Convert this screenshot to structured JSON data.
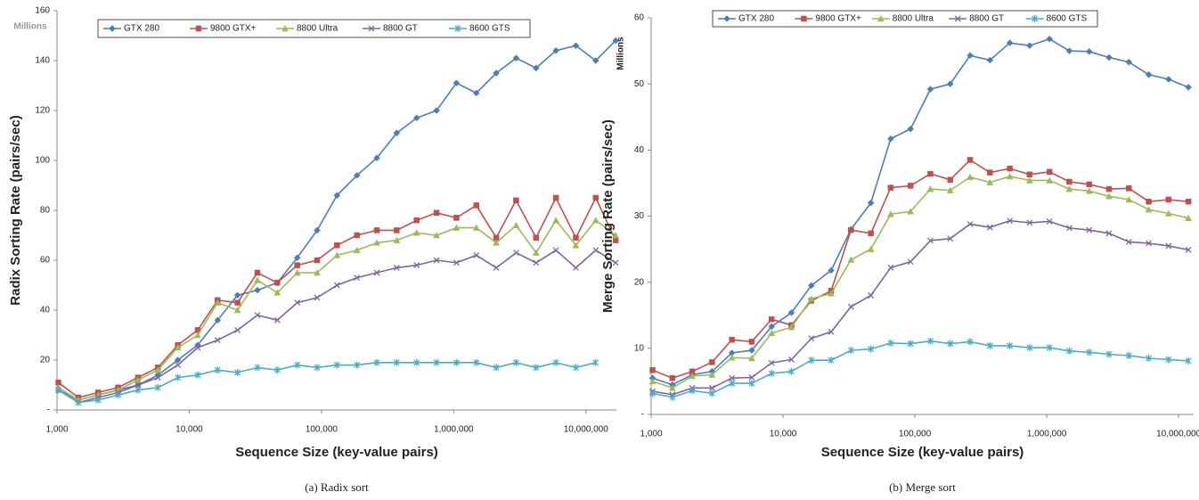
{
  "chart_data": [
    {
      "type": "line",
      "y_title": "Radix Sorting Rate (pairs/sec)",
      "y_unit_label": "Millions",
      "x_title": "Sequence Size (key-value pairs)",
      "caption": "(a) Radix sort",
      "log_x": true,
      "grid": false,
      "legend_position": "top",
      "xlim": [
        1000,
        17000000
      ],
      "xticks": [
        {
          "value": 1000,
          "label": "1,000"
        },
        {
          "value": 10000,
          "label": "10,000"
        },
        {
          "value": 100000,
          "label": "100,000"
        },
        {
          "value": 1000000,
          "label": "1,000,000"
        },
        {
          "value": 10000000,
          "label": "10,000,000"
        }
      ],
      "ylim": [
        0,
        160
      ],
      "yticks": [
        {
          "value": 0,
          "label": "-"
        },
        20,
        40,
        60,
        80,
        100,
        120,
        140,
        160
      ],
      "x": [
        1024,
        1448,
        2048,
        2896,
        4096,
        5793,
        8192,
        11585,
        16384,
        23170,
        32768,
        46341,
        65536,
        92682,
        131072,
        185364,
        262144,
        370728,
        524288,
        741455,
        1048576,
        1482910,
        2097152,
        2965821,
        4194304,
        5931642,
        8388608,
        11863283,
        16777216
      ],
      "series": [
        {
          "name": "GTX 280",
          "color": "#4a7ebb",
          "marker": "diamond",
          "values": [
            8,
            4,
            6,
            8,
            10,
            14,
            20,
            26,
            36,
            46,
            48,
            51,
            61,
            72,
            86,
            94,
            101,
            111,
            117,
            120,
            131,
            127,
            135,
            141,
            137,
            144,
            146,
            140,
            148
          ]
        },
        {
          "name": "9800 GTX+",
          "color": "#c0504d",
          "marker": "square",
          "values": [
            11,
            5,
            7,
            9,
            13,
            17,
            26,
            32,
            44,
            43,
            55,
            51,
            58,
            60,
            66,
            70,
            72,
            72,
            76,
            79,
            77,
            82,
            69,
            84,
            69,
            85,
            69,
            85,
            68
          ]
        },
        {
          "name": "8800 Ultra",
          "color": "#9bbb59",
          "marker": "triangle",
          "values": [
            9,
            4,
            6,
            8,
            12,
            16,
            25,
            30,
            43,
            40,
            52,
            47,
            55,
            55,
            62,
            64,
            67,
            68,
            71,
            70,
            73,
            73,
            67,
            74,
            63,
            76,
            66,
            76,
            70
          ]
        },
        {
          "name": "8800 GT",
          "color": "#8064a2",
          "marker": "x",
          "values": [
            8,
            3,
            5,
            7,
            10,
            13,
            18,
            25,
            28,
            32,
            38,
            36,
            43,
            45,
            50,
            53,
            55,
            57,
            58,
            60,
            59,
            62,
            57,
            63,
            59,
            64,
            57,
            64,
            59
          ]
        },
        {
          "name": "8600 GTS",
          "color": "#4bacc6",
          "marker": "star",
          "values": [
            8,
            3,
            4,
            6,
            8,
            9,
            13,
            14,
            16,
            15,
            17,
            16,
            18,
            17,
            18,
            18,
            19,
            19,
            19,
            19,
            19,
            19,
            17,
            19,
            17,
            19,
            17,
            19,
            null
          ]
        }
      ]
    },
    {
      "type": "line",
      "y_title": "Merge Sorting Rate (pairs/sec)",
      "y_unit_label": "Millions",
      "x_title": "Sequence Size (key-value pairs)",
      "caption": "(b) Merge sort",
      "log_x": true,
      "grid": false,
      "legend_position": "top",
      "xlim": [
        1000,
        13000000
      ],
      "xticks": [
        {
          "value": 1000,
          "label": "1,000"
        },
        {
          "value": 10000,
          "label": "10,000"
        },
        {
          "value": 100000,
          "label": "100,000"
        },
        {
          "value": 1000000,
          "label": "1,000,000"
        },
        {
          "value": 10000000,
          "label": "10,000,000"
        }
      ],
      "ylim": [
        0,
        60
      ],
      "yticks": [
        {
          "value": 0,
          "label": "-"
        },
        10,
        20,
        30,
        40,
        50,
        60
      ],
      "x": [
        1024,
        1448,
        2048,
        2896,
        4096,
        5793,
        8192,
        11585,
        16384,
        23170,
        32768,
        46341,
        65536,
        92682,
        131072,
        185364,
        262144,
        370728,
        524288,
        741455,
        1048576,
        1482910,
        2097152,
        2965821,
        4194304,
        5931642,
        8388608,
        11863283
      ],
      "series": [
        {
          "name": "GTX 280",
          "color": "#4a7ebb",
          "marker": "diamond",
          "values": [
            5.5,
            4.5,
            6,
            6.5,
            9.3,
            9.7,
            13.3,
            15.4,
            19.5,
            21.8,
            28,
            32,
            41.7,
            43.2,
            49.2,
            50,
            54.3,
            53.6,
            56.2,
            55.8,
            56.8,
            55,
            54.9,
            54,
            53.3,
            51.4,
            50.7,
            49.5
          ]
        },
        {
          "name": "9800 GTX+",
          "color": "#c0504d",
          "marker": "square",
          "values": [
            6.7,
            5.5,
            6.5,
            7.9,
            11.3,
            11,
            14.4,
            13.5,
            17.2,
            18.7,
            27.9,
            27.4,
            34.3,
            34.6,
            36.4,
            35.5,
            38.5,
            36.6,
            37.2,
            36.3,
            36.7,
            35.2,
            34.8,
            34.1,
            34.2,
            32.2,
            32.5,
            32.2
          ]
        },
        {
          "name": "8800 Ultra",
          "color": "#9bbb59",
          "marker": "triangle",
          "values": [
            5,
            4,
            5.8,
            6,
            8.6,
            8.5,
            12.3,
            13.2,
            17.5,
            18.3,
            23.4,
            25,
            30.3,
            30.7,
            34.1,
            33.9,
            35.9,
            35.1,
            36,
            35.4,
            35.4,
            34.1,
            33.8,
            33,
            32.5,
            31,
            30.4,
            29.7
          ]
        },
        {
          "name": "8800 GT",
          "color": "#8064a2",
          "marker": "x",
          "values": [
            3.5,
            3,
            4,
            4,
            5.5,
            5.6,
            7.8,
            8.3,
            11.5,
            12.5,
            16.3,
            18,
            22.2,
            23.1,
            26.3,
            26.6,
            28.8,
            28.3,
            29.3,
            29,
            29.2,
            28.2,
            27.9,
            27.4,
            26.1,
            25.9,
            25.5,
            24.9
          ]
        },
        {
          "name": "8600 GTS",
          "color": "#4bacc6",
          "marker": "star",
          "values": [
            3.2,
            2.6,
            3.6,
            3.2,
            4.7,
            4.7,
            6.2,
            6.5,
            8.2,
            8.2,
            9.7,
            9.9,
            10.8,
            10.7,
            11.1,
            10.7,
            11,
            10.4,
            10.4,
            10.1,
            10.1,
            9.6,
            9.4,
            9.1,
            8.9,
            8.5,
            8.3,
            8.1
          ]
        }
      ]
    }
  ]
}
